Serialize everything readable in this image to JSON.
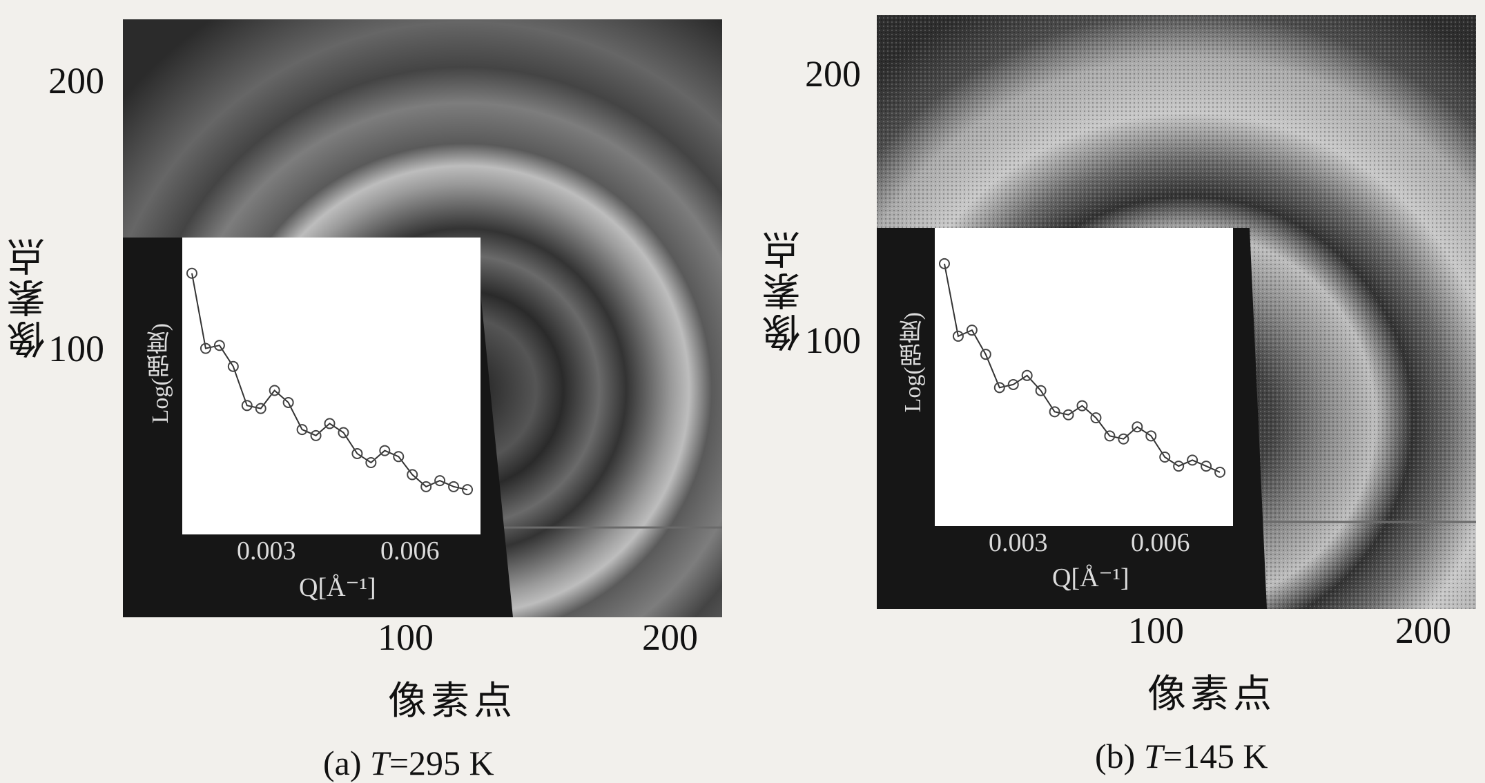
{
  "figure": {
    "panels": [
      {
        "caption_prefix": "(a) ",
        "caption_var": "T",
        "caption_value": "=295 K",
        "y_label": "像素点",
        "x_label": "像素点",
        "x_ticks": [
          "100",
          "200"
        ],
        "y_ticks": [
          "200",
          "100"
        ],
        "inset": {
          "y_label": "Log(强度)",
          "x_label": "Q[Å⁻¹]",
          "x_ticks": [
            "0.003",
            "0.006"
          ]
        }
      },
      {
        "caption_prefix": "(b) ",
        "caption_var": "T",
        "caption_value": "=145 K",
        "y_label": "像素点",
        "x_label": "像素点",
        "x_ticks": [
          "100",
          "200"
        ],
        "y_ticks": [
          "200",
          "100"
        ],
        "inset": {
          "y_label": "Log(强度)",
          "x_label": "Q[Å⁻¹]",
          "x_ticks": [
            "0.003",
            "0.006"
          ]
        }
      }
    ]
  },
  "chart_data": [
    {
      "type": "scatter",
      "panel": "a",
      "xlabel": "Q[Å⁻¹]",
      "ylabel": "Log(强度)",
      "xlim": [
        0,
        0.0085
      ],
      "x": [
        0.0002,
        0.0006,
        0.001,
        0.0014,
        0.0018,
        0.0022,
        0.0026,
        0.003,
        0.0034,
        0.0038,
        0.0042,
        0.0046,
        0.005,
        0.0054,
        0.0058,
        0.0062,
        0.0066,
        0.007,
        0.0074,
        0.0078,
        0.0082
      ],
      "y": [
        10.0,
        7.5,
        7.6,
        6.9,
        5.6,
        5.5,
        6.1,
        5.7,
        4.8,
        4.6,
        5.0,
        4.7,
        4.0,
        3.7,
        4.1,
        3.9,
        3.3,
        2.9,
        3.1,
        2.9,
        2.8
      ]
    },
    {
      "type": "scatter",
      "panel": "b",
      "xlabel": "Q[Å⁻¹]",
      "ylabel": "Log(强度)",
      "xlim": [
        0,
        0.0085
      ],
      "x": [
        0.0002,
        0.0006,
        0.001,
        0.0014,
        0.0018,
        0.0022,
        0.0026,
        0.003,
        0.0034,
        0.0038,
        0.0042,
        0.0046,
        0.005,
        0.0054,
        0.0058,
        0.0062,
        0.0066,
        0.007,
        0.0074,
        0.0078,
        0.0082
      ],
      "y": [
        10.0,
        7.6,
        7.8,
        7.0,
        5.9,
        6.0,
        6.3,
        5.8,
        5.1,
        5.0,
        5.3,
        4.9,
        4.3,
        4.2,
        4.6,
        4.3,
        3.6,
        3.3,
        3.5,
        3.3,
        3.1
      ]
    }
  ]
}
